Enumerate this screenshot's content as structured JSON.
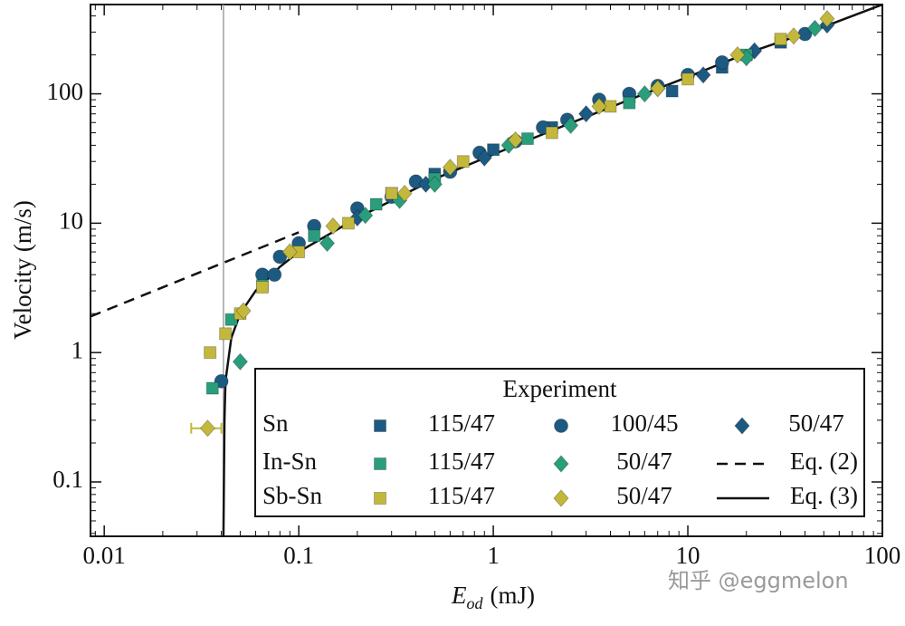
{
  "chart_data": {
    "type": "scatter",
    "xlabel": {
      "main": "E",
      "sub": "od",
      "unit": "(mJ)"
    },
    "ylabel": "Velocity (m/s)",
    "xlim": [
      0.0085,
      100
    ],
    "ylim": [
      0.038,
      490
    ],
    "xticks": [
      0.01,
      0.1,
      1,
      10,
      100
    ],
    "yticks": [
      0.1,
      1,
      10,
      100
    ],
    "xscale": "log",
    "yscale": "log",
    "minor_ticks": true,
    "vline": {
      "x": 0.041,
      "color": "#a0a0a0"
    },
    "legend": {
      "title": "Experiment",
      "position": "lower right"
    },
    "groups": [
      {
        "name": "Sn",
        "series": [
          {
            "name": "115/47",
            "marker": "square",
            "color": "#1d5a82",
            "x": [
              0.3,
              0.5,
              1,
              2,
              5,
              8.3,
              15,
              30
            ],
            "y": [
              17,
              24,
              37,
              55,
              95,
              105,
              160,
              250
            ]
          },
          {
            "name": "100/45",
            "marker": "circle",
            "color": "#1d5a82",
            "x": [
              0.04,
              0.065,
              0.075,
              0.08,
              0.1,
              0.12,
              0.2,
              0.3,
              0.4,
              0.6,
              0.85,
              1.3,
              1.8,
              2.4,
              3.5,
              5,
              7,
              10,
              15,
              40
            ],
            "y": [
              0.6,
              4,
              4,
              5.5,
              7,
              9.5,
              13,
              16,
              21,
              25,
              35,
              43,
              55,
              63,
              90,
              100,
              115,
              140,
              175,
              290
            ]
          },
          {
            "name": "50/47",
            "marker": "diamond",
            "color": "#1d5a82",
            "x": [
              0.2,
              0.45,
              0.9,
              3,
              7,
              12,
              22,
              52
            ],
            "y": [
              11,
              20,
              32,
              70,
              110,
              140,
              215,
              340
            ]
          }
        ]
      },
      {
        "name": "In-Sn",
        "series": [
          {
            "name": "115/47",
            "marker": "square",
            "color": "#2a9e7c",
            "x": [
              0.036,
              0.045,
              0.065,
              0.12,
              0.25,
              0.5,
              1.5,
              5,
              20
            ],
            "y": [
              0.53,
              1.8,
              3.3,
              8,
              14,
              22,
              45,
              85,
              200
            ]
          },
          {
            "name": "50/47",
            "marker": "diamond",
            "color": "#2a9e7c",
            "x": [
              0.05,
              0.14,
              0.22,
              0.33,
              0.5,
              1.2,
              2.5,
              6,
              20,
              45
            ],
            "y": [
              0.85,
              7,
              11.5,
              15,
              20,
              40,
              57,
              100,
              190,
              320
            ]
          }
        ]
      },
      {
        "name": "Sb-Sn",
        "series": [
          {
            "name": "115/47",
            "marker": "square",
            "color": "#c4b83c",
            "x": [
              0.035,
              0.042,
              0.05,
              0.065,
              0.1,
              0.18,
              0.3,
              0.7,
              2,
              4,
              10,
              30
            ],
            "y": [
              1,
              1.4,
              2,
              3.2,
              6,
              10,
              17,
              30,
              50,
              80,
              130,
              265
            ]
          },
          {
            "name": "50/47",
            "marker": "diamond",
            "color": "#c4b83c",
            "x": [
              0.034,
              0.052,
              0.09,
              0.15,
              0.35,
              0.6,
              1.3,
              3.5,
              7,
              18,
              35,
              52
            ],
            "y": [
              0.26,
              2.1,
              6,
              9.5,
              17,
              27,
              44,
              80,
              110,
              200,
              280,
              380
            ],
            "x_err": [
              0.006,
              null,
              null,
              null,
              null,
              null,
              null,
              null,
              null,
              null,
              null,
              null
            ]
          }
        ]
      }
    ],
    "lines": [
      {
        "name": "Eq. (2)",
        "style": "dashed",
        "color": "#111111",
        "x": [
          0.0085,
          0.1
        ],
        "y": [
          1.9,
          8.5
        ]
      },
      {
        "name": "Eq. (3)",
        "style": "solid",
        "color": "#111111",
        "x": [
          0.041,
          0.0415,
          0.042,
          0.045,
          0.05,
          0.06,
          0.08,
          0.1,
          0.2,
          0.5,
          1,
          2,
          5,
          10,
          20,
          50,
          100
        ],
        "y": [
          0.038,
          0.3,
          0.6,
          1.3,
          2,
          3,
          4.6,
          6,
          11,
          22,
          34,
          52,
          90,
          135,
          205,
          330,
          490
        ]
      }
    ]
  },
  "watermark": "知乎 @eggmelon"
}
